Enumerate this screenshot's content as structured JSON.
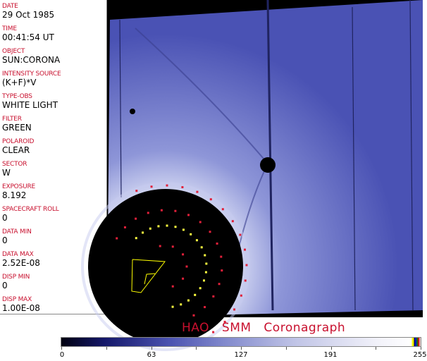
{
  "fields": [
    {
      "label": "DATE",
      "value": "29 Oct 1985"
    },
    {
      "label": "TIME",
      "value": "00:41:54 UT"
    },
    {
      "label": "OBJECT",
      "value": "SUN:CORONA"
    },
    {
      "label": "INTENSITY SOURCE",
      "value": "(K+F)*V"
    },
    {
      "label": "TYPE-OBS",
      "value": "WHITE LIGHT"
    },
    {
      "label": "FILTER",
      "value": "GREEN"
    },
    {
      "label": "POLAROID",
      "value": "CLEAR"
    },
    {
      "label": "SECTOR",
      "value": "W"
    },
    {
      "label": "EXPOSURE",
      "value": "8.192"
    },
    {
      "label": "SPACECRAFT ROLL",
      "value": "0"
    },
    {
      "label": "DATA MIN",
      "value": "0"
    },
    {
      "label": "DATA MAX",
      "value": "2.52E-08"
    },
    {
      "label": "DISP MIN",
      "value": "0"
    },
    {
      "label": "DISP MAX",
      "value": "1.00E-08"
    }
  ],
  "title": "HAO SMM Coronagraph",
  "colorbar": {
    "ticks": [
      "0",
      "63",
      "127",
      "191",
      "255"
    ],
    "min": 0,
    "max": 255
  },
  "colors": {
    "label": "#c8102e",
    "image_blue": "#5a62c0",
    "marker_red": "#e0203a",
    "marker_yellow": "#ffff40"
  }
}
